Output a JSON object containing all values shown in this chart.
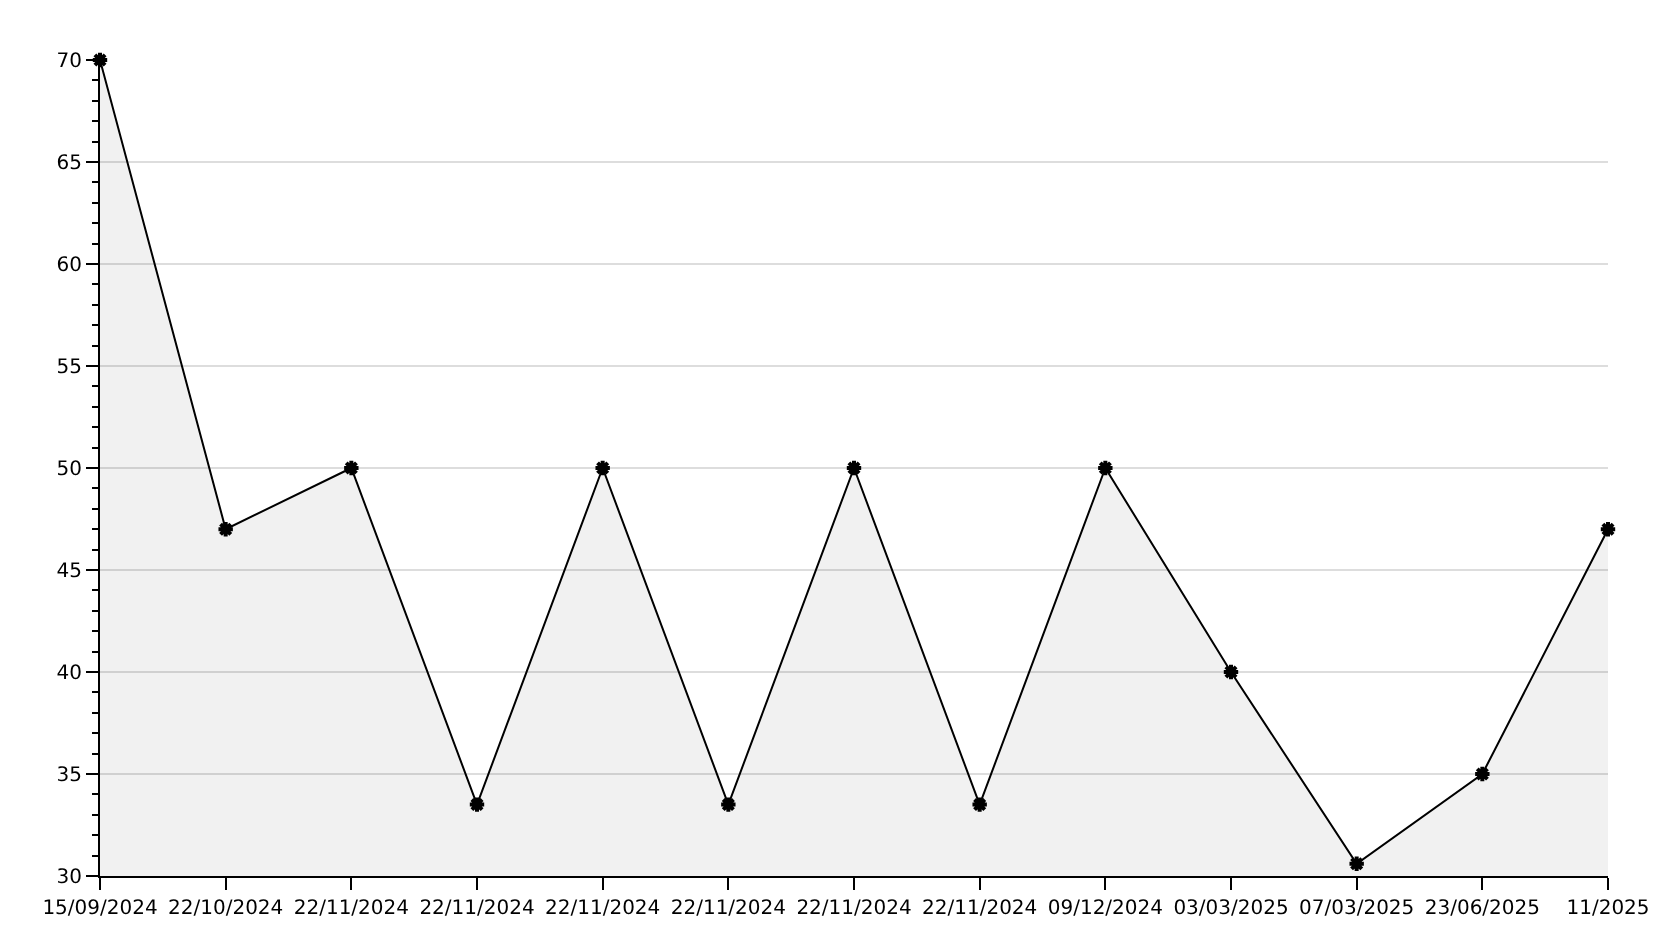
{
  "chart_data": {
    "type": "area",
    "categories": [
      "15/09/2024",
      "22/10/2024",
      "22/11/2024",
      "22/11/2024",
      "22/11/2024",
      "22/11/2024",
      "22/11/2024",
      "22/11/2024",
      "09/12/2024",
      "03/03/2025",
      "07/03/2025",
      "23/06/2025",
      "11/2025"
    ],
    "series": [
      {
        "color": "#000000",
        "values": [
          70,
          47,
          50,
          33.5,
          50,
          33.5,
          50,
          33.5,
          50,
          40,
          30.6,
          35,
          47
        ]
      }
    ],
    "ylim": [
      30,
      70
    ],
    "yticks": [
      30,
      35,
      40,
      45,
      50,
      55,
      60,
      65,
      70
    ],
    "grid": "y",
    "marker": "cross",
    "line_style": "solid"
  }
}
